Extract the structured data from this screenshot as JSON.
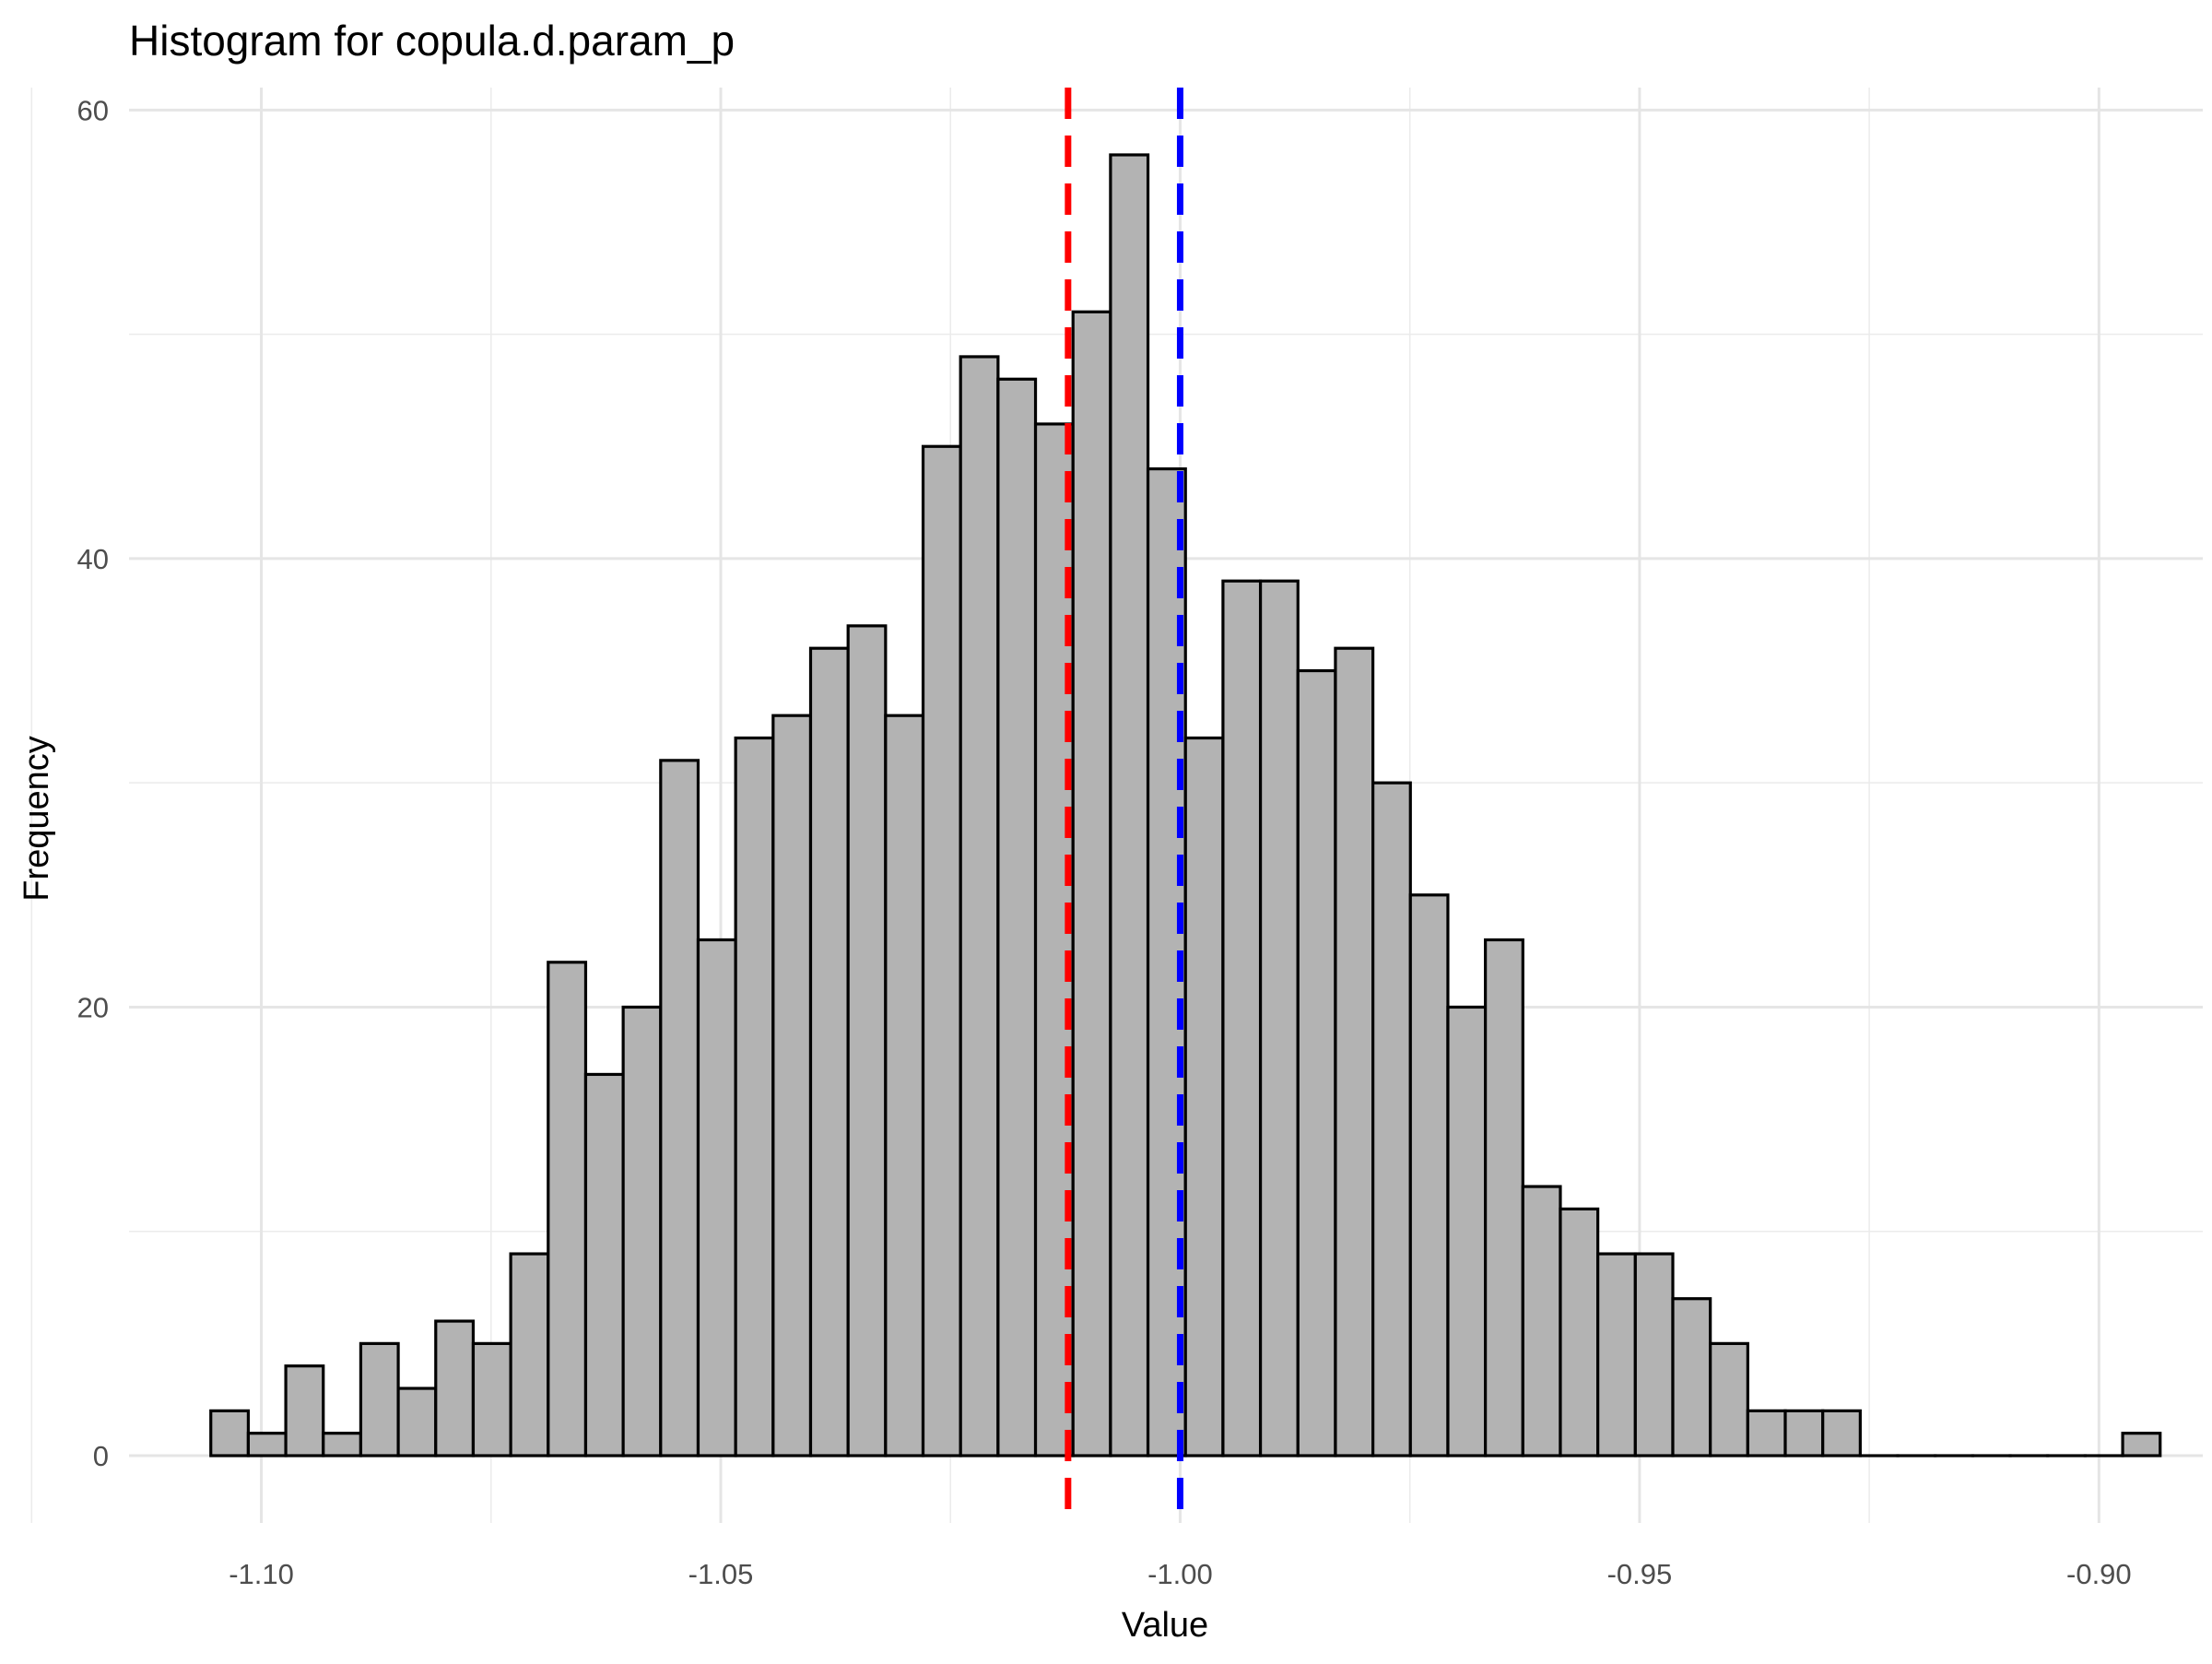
{
  "chart_data": {
    "type": "bar",
    "title": "Histogram for copula.d.param_p",
    "xlabel": "Value",
    "ylabel": "Frequency",
    "xlim": [
      -1.1144,
      -0.8887
    ],
    "ylim": [
      -3.0,
      61.0
    ],
    "x_ticks": [
      {
        "value": -1.1,
        "label": "-1.10"
      },
      {
        "value": -1.05,
        "label": "-1.05"
      },
      {
        "value": -1.0,
        "label": "-1.00"
      },
      {
        "value": -0.95,
        "label": "-0.95"
      },
      {
        "value": -0.9,
        "label": "-0.90"
      }
    ],
    "y_ticks": [
      {
        "value": 0,
        "label": "0"
      },
      {
        "value": 20,
        "label": "20"
      },
      {
        "value": 40,
        "label": "40"
      },
      {
        "value": 60,
        "label": "60"
      }
    ],
    "x_minor_ticks": [
      -1.125,
      -1.075,
      -1.025,
      -0.975,
      -0.925
    ],
    "y_minor_ticks": [
      10,
      30,
      50
    ],
    "grid": true,
    "bin_start": -1.1055,
    "bin_width": 0.00408,
    "values": [
      2,
      1,
      4,
      1,
      5,
      3,
      6,
      5,
      9,
      22,
      17,
      20,
      31,
      23,
      32,
      33,
      36,
      37,
      33,
      45,
      49,
      48,
      46,
      51,
      58,
      44,
      32,
      39,
      39,
      35,
      36,
      30,
      25,
      20,
      23,
      12,
      11,
      9,
      9,
      7,
      5,
      2,
      2,
      2,
      0,
      0,
      0,
      0,
      0,
      0,
      0,
      1
    ],
    "bar_fill": "#b3b3b3",
    "bar_stroke": "#000000",
    "reference_lines": [
      {
        "x": -1.0122,
        "color": "#ff0000",
        "style": "dashed"
      },
      {
        "x": -1.0,
        "color": "#0000ff",
        "style": "dashed"
      }
    ]
  }
}
